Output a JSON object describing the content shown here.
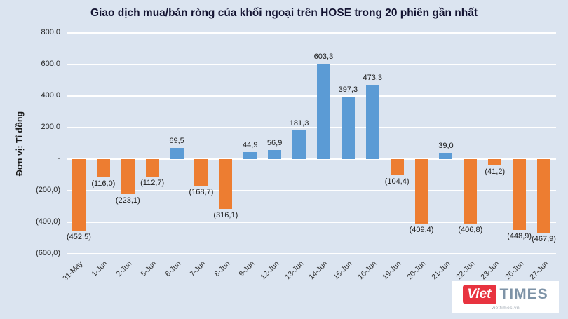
{
  "chart_data": {
    "type": "bar",
    "title": "Giao dịch mua/bán ròng của khối ngoại trên HOSE trong 20 phiên gần nhất",
    "unit_label": "Đơn vị: Tỉ đồng",
    "categories": [
      "31-May",
      "1-Jun",
      "2-Jun",
      "5-Jun",
      "6-Jun",
      "7-Jun",
      "8-Jun",
      "9-Jun",
      "12-Jun",
      "13-Jun",
      "14-Jun",
      "15-Jun",
      "16-Jun",
      "19-Jun",
      "20-Jun",
      "21-Jun",
      "22-Jun",
      "23-Jun",
      "26-Jun",
      "27-Jun"
    ],
    "values": [
      -452.5,
      -116.0,
      -223.1,
      -112.7,
      69.5,
      -168.7,
      -316.1,
      44.9,
      56.9,
      181.3,
      603.3,
      397.3,
      473.3,
      -104.4,
      -409.4,
      39.0,
      -406.8,
      -41.2,
      -448.9,
      -467.9
    ],
    "value_labels": [
      "(452,5)",
      "(116,0)",
      "(223,1)",
      "(112,7)",
      "69,5",
      "(168,7)",
      "(316,1)",
      "44,9",
      "56,9",
      "181,3",
      "603,3",
      "397,3",
      "473,3",
      "(104,4)",
      "(409,4)",
      "39,0",
      "(406,8)",
      "(41,2)",
      "(448,9)",
      "(467,9)"
    ],
    "y_tick_values": [
      800,
      600,
      400,
      200,
      0,
      -200,
      -400,
      -600
    ],
    "y_tick_labels": [
      "800,0",
      "600,0",
      "400,0",
      "200,0",
      "-",
      "(200,0)",
      "(400,0)",
      "(600,0)"
    ],
    "ylim": [
      -600,
      800
    ],
    "grid": true,
    "legend_position": "none",
    "colors": {
      "positive": "#5B9BD5",
      "negative": "#ED7D31",
      "background": "#dbe4f0",
      "gridline": "#ffffff"
    }
  },
  "logo": {
    "brand_primary": "Viet",
    "brand_secondary": "TIMES",
    "tagline": "viettimes.vn"
  }
}
